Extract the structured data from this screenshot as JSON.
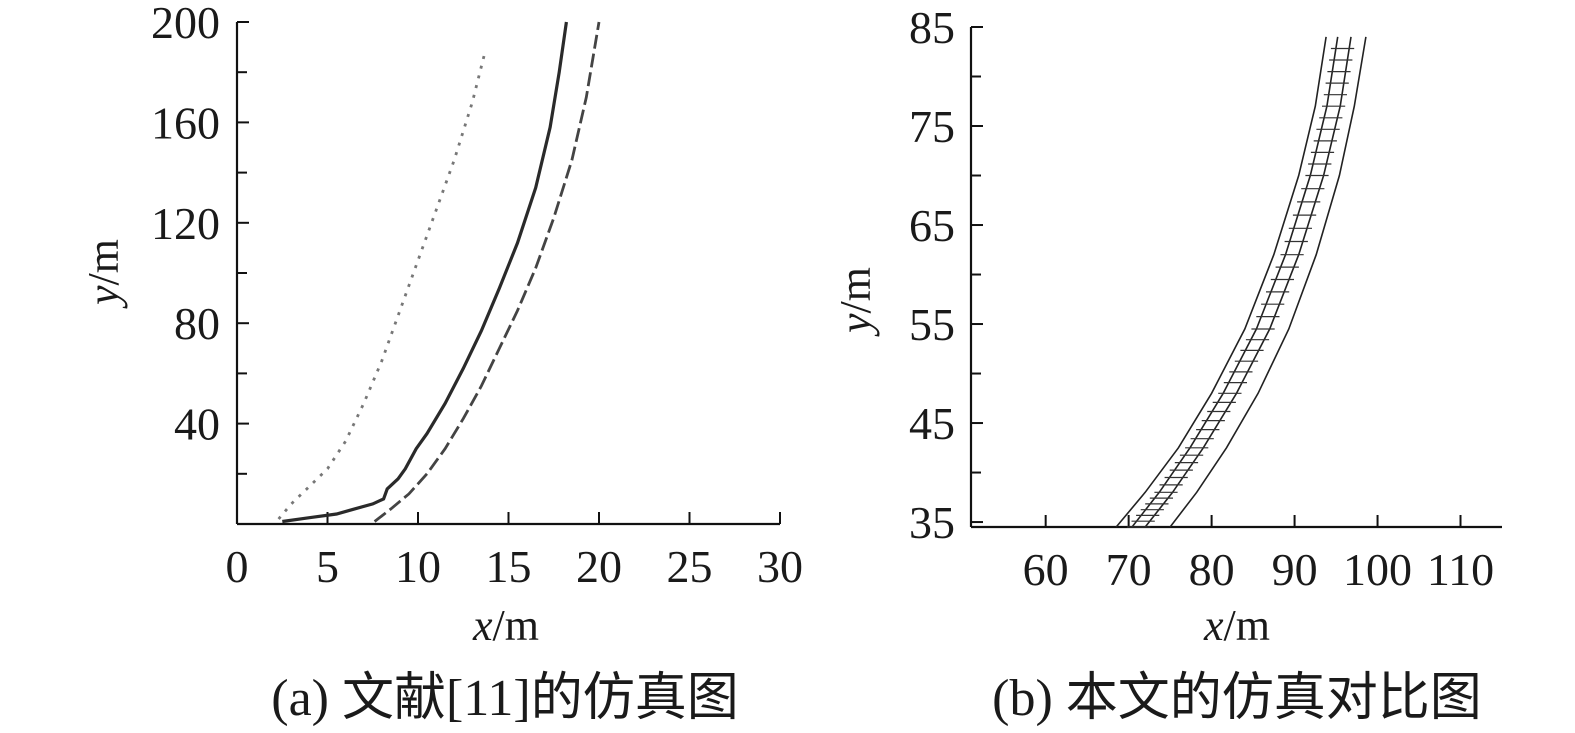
{
  "chart_data": [
    {
      "type": "line",
      "caption": "(a) 文献[11]的仿真图",
      "xlabel_var": "x",
      "xlabel_unit": "/m",
      "ylabel_var": "y",
      "ylabel_unit": "/m",
      "xlim": [
        0,
        30
      ],
      "ylim": [
        0,
        200
      ],
      "x_ticks": [
        "0",
        "5",
        "10",
        "15",
        "20",
        "25",
        "30"
      ],
      "y_ticks": [
        "200",
        "160",
        "120",
        "80",
        "40"
      ],
      "y_tick_values": [
        200,
        160,
        120,
        80,
        40
      ],
      "x_tick_values": [
        0,
        5,
        10,
        15,
        20,
        25,
        30
      ],
      "series": [
        {
          "style": "dotted-light",
          "points": [
            [
              2.3,
              2
            ],
            [
              3,
              8
            ],
            [
              4,
              15
            ],
            [
              5,
              22
            ],
            [
              6,
              33
            ],
            [
              7,
              48
            ],
            [
              8,
              65
            ],
            [
              9,
              85
            ],
            [
              10,
              105
            ],
            [
              11,
              125
            ],
            [
              12,
              145
            ],
            [
              13,
              168
            ],
            [
              13.7,
              188
            ]
          ]
        },
        {
          "style": "solid",
          "points": [
            [
              2.5,
              1
            ],
            [
              4,
              2.5
            ],
            [
              5.5,
              4
            ],
            [
              6.5,
              6
            ],
            [
              7.5,
              8
            ],
            [
              8.1,
              10
            ],
            [
              8.3,
              14
            ],
            [
              8.9,
              18
            ],
            [
              9.3,
              22
            ],
            [
              9.9,
              30
            ],
            [
              10.5,
              36
            ],
            [
              11.5,
              48
            ],
            [
              12.5,
              62
            ],
            [
              13.5,
              77
            ],
            [
              14.5,
              94
            ],
            [
              15.5,
              112
            ],
            [
              16.5,
              134
            ],
            [
              17.3,
              158
            ],
            [
              17.8,
              180
            ],
            [
              18.2,
              200
            ]
          ]
        },
        {
          "style": "dashed",
          "points": [
            [
              7.6,
              1
            ],
            [
              8.5,
              6
            ],
            [
              9.5,
              12
            ],
            [
              10.5,
              20
            ],
            [
              11.5,
              30
            ],
            [
              12.5,
              42
            ],
            [
              13.5,
              55
            ],
            [
              14.5,
              70
            ],
            [
              15.5,
              85
            ],
            [
              16.5,
              102
            ],
            [
              17.5,
              122
            ],
            [
              18.5,
              145
            ],
            [
              19.3,
              170
            ],
            [
              20,
              200
            ]
          ]
        }
      ]
    },
    {
      "type": "line",
      "caption": "(b) 本文的仿真对比图",
      "xlabel_var": "x",
      "xlabel_unit": "/m",
      "ylabel_var": "y",
      "ylabel_unit": "/m",
      "xlim": [
        51,
        115
      ],
      "ylim": [
        34.5,
        85
      ],
      "x_ticks": [
        "60",
        "70",
        "80",
        "90",
        "100",
        "110"
      ],
      "x_tick_values": [
        60,
        70,
        80,
        90,
        100,
        110
      ],
      "y_ticks": [
        "85",
        "75",
        "65",
        "55",
        "45",
        "35"
      ],
      "y_tick_values": [
        85,
        75,
        65,
        55,
        45,
        35
      ],
      "series": [
        {
          "style": "thin-boundary-left",
          "points": [
            [
              68.5,
              34.5
            ],
            [
              72,
              38
            ],
            [
              76,
              42.5
            ],
            [
              80,
              48
            ],
            [
              84,
              54.5
            ],
            [
              87.5,
              62
            ],
            [
              90.5,
              70
            ],
            [
              92.5,
              77
            ],
            [
              93.8,
              84
            ]
          ]
        },
        {
          "style": "hatched-band",
          "points": [
            [
              71.2,
              34.5
            ],
            [
              74.5,
              38
            ],
            [
              78.2,
              42.5
            ],
            [
              82.2,
              48
            ],
            [
              86.2,
              54.5
            ],
            [
              89.7,
              62
            ],
            [
              92.7,
              70
            ],
            [
              94.7,
              77
            ],
            [
              96,
              84
            ]
          ]
        },
        {
          "style": "thin-boundary-right",
          "points": [
            [
              75,
              34.5
            ],
            [
              78.2,
              38
            ],
            [
              81.8,
              42.5
            ],
            [
              85.6,
              48
            ],
            [
              89.3,
              54.5
            ],
            [
              92.6,
              62
            ],
            [
              95.4,
              70
            ],
            [
              97.2,
              77
            ],
            [
              98.6,
              84
            ]
          ]
        }
      ]
    }
  ]
}
